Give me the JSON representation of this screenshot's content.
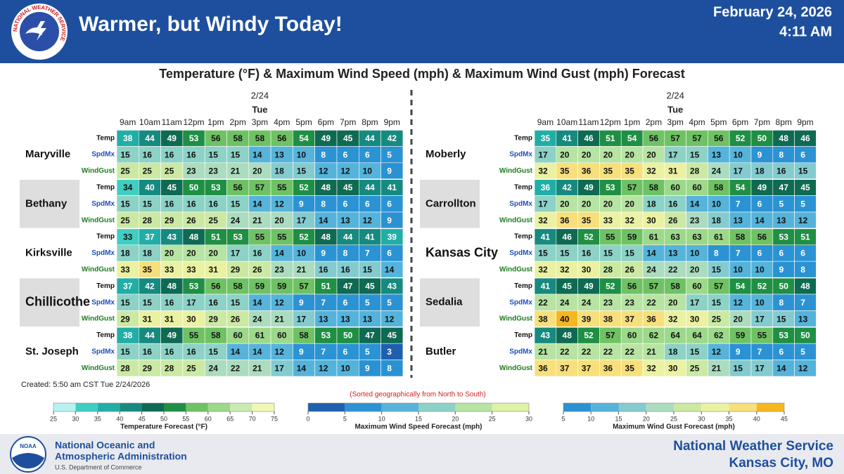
{
  "header": {
    "title": "Warmer, but Windy Today!",
    "date": "February 24, 2026",
    "time": "4:11 AM",
    "logo_text": "NATIONAL WEATHER SERVICE"
  },
  "chart_title": "Temperature (°F) & Maximum Wind Speed (mph) & Maximum Wind Gust (mph) Forecast",
  "row_labels": [
    "Temp",
    "SpdMx",
    "WindGust"
  ],
  "panels": [
    {
      "date": "2/24",
      "day": "Tue",
      "hours": [
        "9am",
        "10am",
        "11am",
        "12pm",
        "1pm",
        "2pm",
        "3pm",
        "4pm",
        "5pm",
        "6pm",
        "7pm",
        "8pm",
        "9pm"
      ],
      "locations": [
        {
          "name": "Maryville",
          "rows": [
            [
              38,
              44,
              49,
              53,
              56,
              58,
              58,
              56,
              54,
              49,
              45,
              44,
              42
            ],
            [
              15,
              16,
              16,
              16,
              15,
              15,
              14,
              13,
              10,
              8,
              6,
              6,
              5
            ],
            [
              25,
              25,
              25,
              23,
              23,
              21,
              20,
              18,
              15,
              12,
              12,
              10,
              9
            ]
          ]
        },
        {
          "name": "Bethany",
          "rows": [
            [
              34,
              40,
              45,
              50,
              53,
              56,
              57,
              55,
              52,
              48,
              45,
              44,
              41
            ],
            [
              15,
              15,
              16,
              16,
              16,
              15,
              14,
              12,
              9,
              8,
              6,
              6,
              6
            ],
            [
              25,
              28,
              29,
              26,
              25,
              24,
              21,
              20,
              17,
              14,
              13,
              12,
              9
            ]
          ]
        },
        {
          "name": "Kirksville",
          "rows": [
            [
              33,
              37,
              43,
              48,
              51,
              53,
              55,
              55,
              52,
              48,
              44,
              41,
              39
            ],
            [
              18,
              18,
              20,
              20,
              20,
              17,
              16,
              14,
              10,
              9,
              8,
              7,
              6
            ],
            [
              33,
              35,
              33,
              33,
              31,
              29,
              26,
              23,
              21,
              16,
              16,
              15,
              14
            ]
          ]
        },
        {
          "name": "Chillicothe",
          "rows": [
            [
              37,
              42,
              48,
              53,
              56,
              58,
              59,
              59,
              57,
              51,
              47,
              45,
              43
            ],
            [
              15,
              15,
              16,
              17,
              16,
              15,
              14,
              12,
              9,
              7,
              6,
              5,
              5
            ],
            [
              29,
              31,
              31,
              30,
              29,
              26,
              24,
              21,
              17,
              13,
              13,
              13,
              12
            ]
          ]
        },
        {
          "name": "St. Joseph",
          "rows": [
            [
              38,
              44,
              49,
              55,
              58,
              60,
              61,
              60,
              58,
              53,
              50,
              47,
              45
            ],
            [
              15,
              16,
              16,
              16,
              15,
              14,
              14,
              12,
              9,
              7,
              6,
              5,
              3
            ],
            [
              28,
              29,
              28,
              25,
              24,
              22,
              21,
              17,
              14,
              12,
              10,
              9,
              8
            ]
          ]
        }
      ]
    },
    {
      "date": "2/24",
      "day": "Tue",
      "hours": [
        "9am",
        "10am",
        "11am",
        "12pm",
        "1pm",
        "2pm",
        "3pm",
        "4pm",
        "5pm",
        "6pm",
        "7pm",
        "8pm",
        "9pm"
      ],
      "locations": [
        {
          "name": "Moberly",
          "rows": [
            [
              35,
              41,
              46,
              51,
              54,
              56,
              57,
              57,
              56,
              52,
              50,
              48,
              46
            ],
            [
              17,
              20,
              20,
              20,
              20,
              20,
              17,
              15,
              13,
              10,
              9,
              8,
              6
            ],
            [
              32,
              35,
              36,
              35,
              35,
              32,
              31,
              28,
              24,
              17,
              18,
              16,
              15
            ]
          ]
        },
        {
          "name": "Carrollton",
          "rows": [
            [
              36,
              42,
              49,
              53,
              57,
              58,
              60,
              60,
              58,
              54,
              49,
              47,
              45
            ],
            [
              17,
              20,
              20,
              20,
              20,
              18,
              16,
              14,
              10,
              7,
              6,
              5,
              5
            ],
            [
              32,
              36,
              35,
              33,
              32,
              30,
              26,
              23,
              18,
              13,
              14,
              13,
              12
            ]
          ]
        },
        {
          "name": "Kansas City",
          "rows": [
            [
              41,
              46,
              52,
              55,
              59,
              61,
              63,
              63,
              61,
              58,
              56,
              53,
              51
            ],
            [
              15,
              15,
              16,
              15,
              15,
              14,
              13,
              10,
              8,
              7,
              6,
              6,
              6
            ],
            [
              32,
              32,
              30,
              28,
              26,
              24,
              22,
              20,
              15,
              10,
              10,
              9,
              8
            ]
          ]
        },
        {
          "name": "Sedalia",
          "rows": [
            [
              41,
              45,
              49,
              52,
              56,
              57,
              58,
              60,
              57,
              54,
              52,
              50,
              48
            ],
            [
              22,
              24,
              24,
              23,
              23,
              22,
              20,
              17,
              15,
              12,
              10,
              8,
              7
            ],
            [
              38,
              40,
              39,
              38,
              37,
              36,
              32,
              30,
              25,
              20,
              17,
              15,
              13
            ]
          ]
        },
        {
          "name": "Butler",
          "rows": [
            [
              43,
              48,
              52,
              57,
              60,
              62,
              64,
              64,
              62,
              59,
              55,
              53,
              50
            ],
            [
              21,
              22,
              22,
              22,
              22,
              21,
              18,
              15,
              12,
              9,
              7,
              6,
              5
            ],
            [
              36,
              37,
              37,
              36,
              35,
              32,
              30,
              25,
              21,
              15,
              17,
              14,
              12
            ]
          ]
        }
      ]
    }
  ],
  "created": "Created: 5:50 am CST Tue 2/24/2026",
  "note": "(Sorted geographically from North to South)",
  "legends": [
    {
      "title": "Temperature Forecast (°F)",
      "ticks": [
        25,
        30,
        35,
        40,
        45,
        50,
        55,
        60,
        65,
        70,
        75
      ],
      "colors": [
        "#b6f2f0",
        "#3fcfc2",
        "#22aea6",
        "#178a80",
        "#0f6a52",
        "#1f8f44",
        "#6fc264",
        "#9cd98a",
        "#c9ebb0",
        "#f2f8b4"
      ]
    },
    {
      "title": "Maximum Wind Speed Forecast (mph)",
      "ticks": [
        0,
        5,
        10,
        15,
        20,
        25,
        30
      ],
      "colors": [
        "#1f5fb0",
        "#2b93d3",
        "#56b4da",
        "#8cd2c6",
        "#b7e3a3",
        "#dcf2a6"
      ]
    },
    {
      "title": "Maximum Wind Gust Forecast (mph)",
      "ticks": [
        5,
        10,
        15,
        20,
        25,
        30,
        35,
        40,
        45
      ],
      "colors": [
        "#2a92d2",
        "#54b3da",
        "#84cbcf",
        "#acdcbf",
        "#cbe9a3",
        "#eaf2a2",
        "#f7e07c",
        "#f6b61f"
      ]
    }
  ],
  "footer": {
    "logo": "NOAA",
    "org_line1": "National Oceanic and",
    "org_line2": "Atmospheric Administration",
    "dept": "U.S. Department of Commerce",
    "nws": "National Weather Service",
    "office": "Kansas City, MO"
  }
}
